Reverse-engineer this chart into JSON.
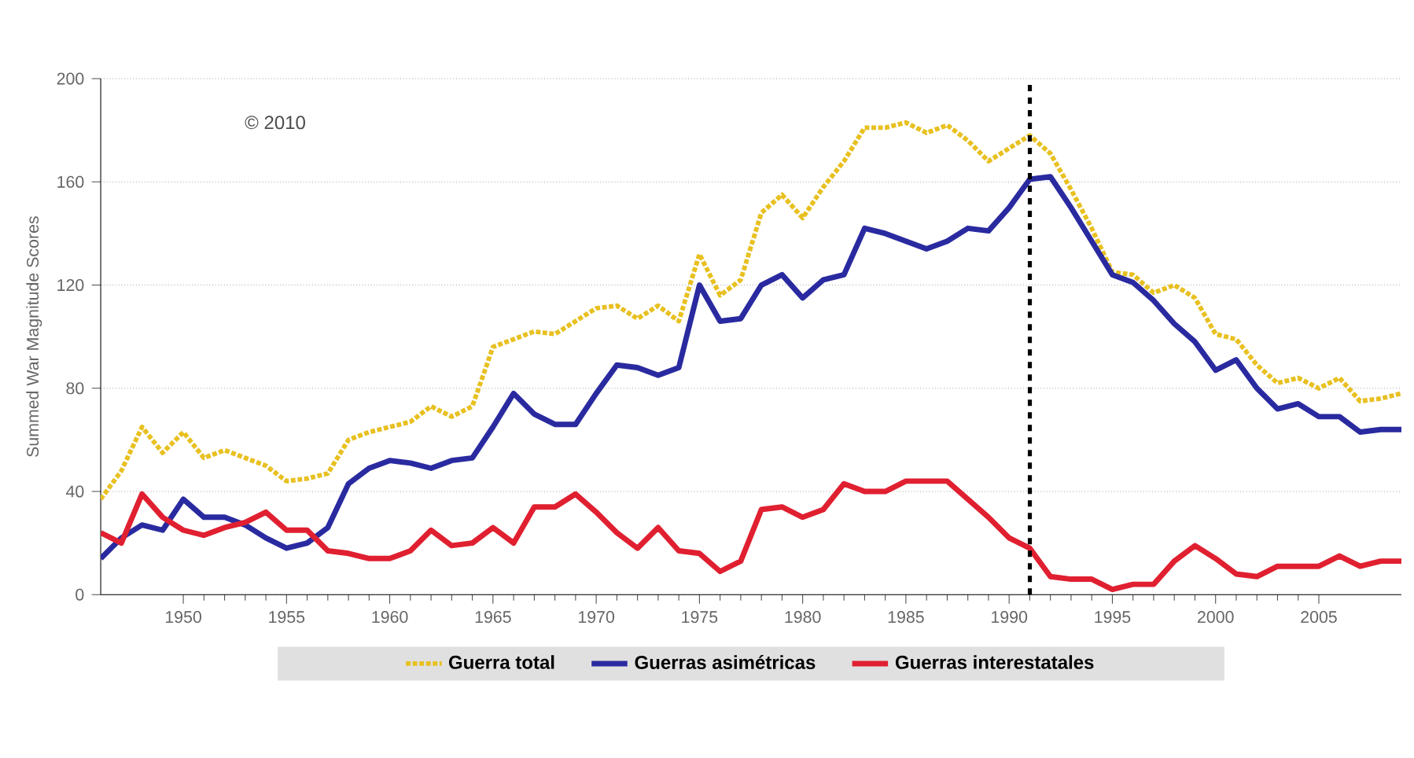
{
  "chart_data": {
    "type": "line",
    "ylabel": "Summed War Magnitude Scores",
    "x": [
      1946,
      1947,
      1948,
      1949,
      1950,
      1951,
      1952,
      1953,
      1954,
      1955,
      1956,
      1957,
      1958,
      1959,
      1960,
      1961,
      1962,
      1963,
      1964,
      1965,
      1966,
      1967,
      1968,
      1969,
      1970,
      1971,
      1972,
      1973,
      1974,
      1975,
      1976,
      1977,
      1978,
      1979,
      1980,
      1981,
      1982,
      1983,
      1984,
      1985,
      1986,
      1987,
      1988,
      1989,
      1990,
      1991,
      1992,
      1993,
      1994,
      1995,
      1996,
      1997,
      1998,
      1999,
      2000,
      2001,
      2002,
      2003,
      2004,
      2005,
      2006,
      2007,
      2008,
      2009
    ],
    "series": [
      {
        "name": "Guerra total",
        "color": "#e8c020",
        "line_style": "dotted",
        "values": [
          37,
          48,
          65,
          55,
          63,
          53,
          56,
          53,
          50,
          44,
          45,
          47,
          60,
          63,
          65,
          67,
          73,
          69,
          73,
          96,
          99,
          102,
          101,
          106,
          111,
          112,
          107,
          112,
          106,
          132,
          116,
          122,
          148,
          155,
          146,
          158,
          168,
          181,
          181,
          183,
          179,
          182,
          176,
          168,
          173,
          178,
          171,
          157,
          142,
          125,
          124,
          117,
          120,
          115,
          101,
          99,
          89,
          82,
          84,
          80,
          84,
          75,
          76,
          78
        ]
      },
      {
        "name": "Guerras asimétricas",
        "color": "#2a2aa0",
        "line_style": "solid",
        "values": [
          14,
          22,
          27,
          25,
          37,
          30,
          30,
          27,
          22,
          18,
          20,
          26,
          43,
          49,
          52,
          51,
          49,
          52,
          53,
          65,
          78,
          70,
          66,
          66,
          78,
          89,
          88,
          85,
          88,
          120,
          106,
          107,
          120,
          124,
          115,
          122,
          124,
          142,
          140,
          137,
          134,
          137,
          142,
          141,
          150,
          161,
          162,
          150,
          137,
          124,
          121,
          114,
          105,
          98,
          87,
          91,
          80,
          72,
          74,
          69,
          69,
          63,
          64,
          64
        ]
      },
      {
        "name": "Guerras interestatales",
        "color": "#e02030",
        "line_style": "solid",
        "values": [
          24,
          20,
          39,
          30,
          25,
          23,
          26,
          28,
          32,
          25,
          25,
          17,
          16,
          14,
          14,
          17,
          25,
          19,
          20,
          26,
          20,
          34,
          34,
          39,
          32,
          24,
          18,
          26,
          17,
          16,
          9,
          13,
          33,
          34,
          30,
          33,
          43,
          40,
          40,
          44,
          44,
          44,
          37,
          30,
          22,
          18,
          7,
          6,
          6,
          2,
          4,
          4,
          13,
          19,
          14,
          8,
          7,
          11,
          11,
          11,
          15,
          11,
          13,
          13
        ]
      }
    ],
    "xlim": [
      1946,
      2009
    ],
    "xticks": [
      1950,
      1955,
      1960,
      1965,
      1970,
      1975,
      1980,
      1985,
      1990,
      1995,
      2000,
      2005
    ],
    "ylim": [
      0,
      200
    ],
    "yticks": [
      0,
      40,
      80,
      120,
      160,
      200
    ],
    "grid": "y",
    "legend": "bottom",
    "ref_lines": [
      {
        "axis": "x",
        "value": 1991,
        "color": "#000000",
        "line_style": "dashed"
      }
    ],
    "annotations": [
      "© 2010"
    ]
  }
}
